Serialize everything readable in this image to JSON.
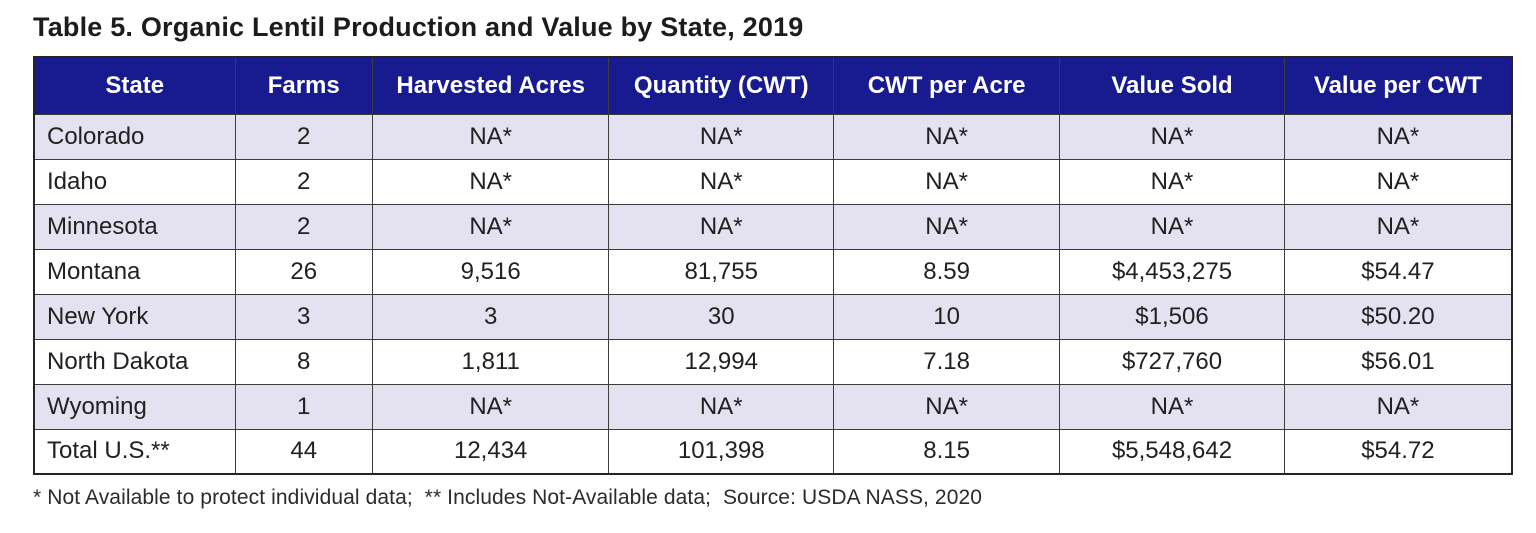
{
  "title": "Table 5. Organic Lentil Production and Value by State, 2019",
  "table": {
    "columns": [
      "State",
      "Farms",
      "Harvested Acres",
      "Quantity (CWT)",
      "CWT per Acre",
      "Value Sold",
      "Value per CWT"
    ],
    "rows": [
      [
        "Colorado",
        "2",
        "NA*",
        "NA*",
        "NA*",
        "NA*",
        "NA*"
      ],
      [
        "Idaho",
        "2",
        "NA*",
        "NA*",
        "NA*",
        "NA*",
        "NA*"
      ],
      [
        "Minnesota",
        "2",
        "NA*",
        "NA*",
        "NA*",
        "NA*",
        "NA*"
      ],
      [
        "Montana",
        "26",
        "9,516",
        "81,755",
        "8.59",
        "$4,453,275",
        "$54.47"
      ],
      [
        "New York",
        "3",
        "3",
        "30",
        "10",
        "$1,506",
        "$50.20"
      ],
      [
        "North Dakota",
        "8",
        "1,811",
        "12,994",
        "7.18",
        "$727,760",
        "$56.01"
      ],
      [
        "Wyoming",
        "1",
        "NA*",
        "NA*",
        "NA*",
        "NA*",
        "NA*"
      ],
      [
        "Total U.S.**",
        "44",
        "12,434",
        "101,398",
        "8.15",
        "$5,548,642",
        "$54.72"
      ]
    ]
  },
  "footnote": "* Not Available to protect individual data;  ** Includes Not-Available data;  Source: USDA NASS, 2020",
  "colors": {
    "header_bg": "#171b8f",
    "header_text": "#ffffff",
    "row_alt_bg": "#e4e2f0",
    "row_bg": "#ffffff",
    "body_text": "#212121",
    "border": "#3c3c3c",
    "outer_border": "#242424"
  }
}
